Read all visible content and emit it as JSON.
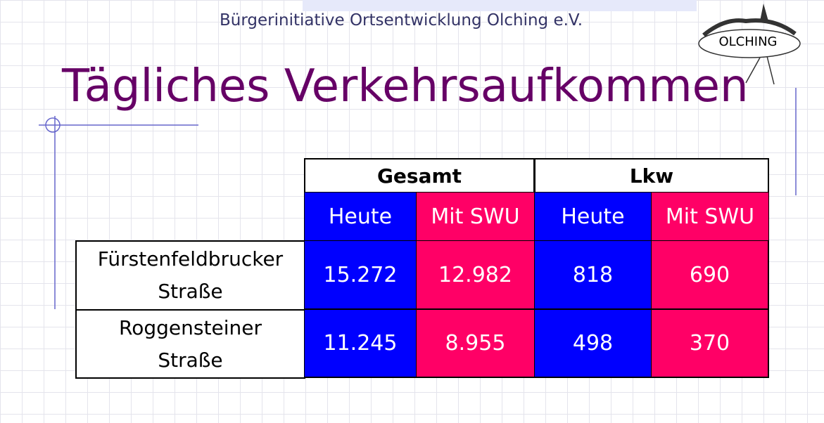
{
  "header": {
    "organization": "Bürgerinitiative Ortsentwicklung Olching e.V.",
    "logo_text": "OLCHING"
  },
  "title": "Tägliches Verkehrsaufkommen",
  "table": {
    "groups": [
      "Gesamt",
      "Lkw"
    ],
    "subheaders": [
      "Heute",
      "Mit SWU",
      "Heute",
      "Mit SWU"
    ],
    "rows": [
      [
        "Fürstenfeldbrucker Straße",
        "15.272",
        "12.982",
        "818",
        "690"
      ],
      [
        "Roggensteiner Straße",
        "11.245",
        "8.955",
        "498",
        "370"
      ]
    ]
  }
}
